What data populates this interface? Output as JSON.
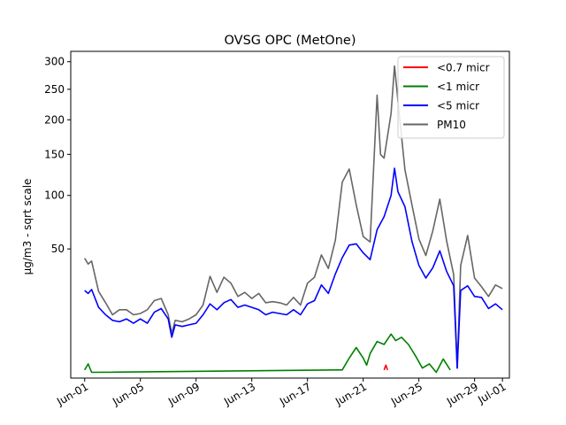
{
  "chart_data": {
    "type": "line",
    "title": "OVSG OPC (MetOne)",
    "xlabel": "",
    "ylabel": "µg/m3 - sqrt scale",
    "y_scale": "sqrt",
    "ylim": [
      0,
      320
    ],
    "xlim": [
      "2023-05-31T00:00",
      "2023-07-01T12:00"
    ],
    "grid": false,
    "legend_position": "top-right",
    "x_ticks": [
      {
        "date": "2023-06-01",
        "label": "Jun-01"
      },
      {
        "date": "2023-06-05",
        "label": "Jun-05"
      },
      {
        "date": "2023-06-09",
        "label": "Jun-09"
      },
      {
        "date": "2023-06-13",
        "label": "Jun-13"
      },
      {
        "date": "2023-06-17",
        "label": "Jun-17"
      },
      {
        "date": "2023-06-21",
        "label": "Jun-21"
      },
      {
        "date": "2023-06-25",
        "label": "Jun-25"
      },
      {
        "date": "2023-06-29",
        "label": "Jun-29"
      },
      {
        "date": "2023-07-01",
        "label": "Jul-01"
      }
    ],
    "y_ticks": [
      50,
      100,
      150,
      200,
      250,
      300
    ],
    "series": [
      {
        "name": "<0.7 micr",
        "color": "#ff0000",
        "points": [
          [
            "2023-06-22T12:00",
            0.2
          ],
          [
            "2023-06-22T15:00",
            0.5
          ],
          [
            "2023-06-22T18:00",
            0.2
          ]
        ]
      },
      {
        "name": "<1 micr",
        "color": "#008000",
        "points": [
          [
            "2023-06-01T00:00",
            0.2
          ],
          [
            "2023-06-01T06:00",
            0.6
          ],
          [
            "2023-06-01T12:00",
            0.1
          ],
          [
            "2023-06-19T12:00",
            0.2
          ],
          [
            "2023-06-20T00:00",
            1.2
          ],
          [
            "2023-06-20T12:00",
            2.8
          ],
          [
            "2023-06-21T00:00",
            1.2
          ],
          [
            "2023-06-21T06:00",
            0.5
          ],
          [
            "2023-06-21T12:00",
            1.8
          ],
          [
            "2023-06-22T00:00",
            4.0
          ],
          [
            "2023-06-22T12:00",
            3.4
          ],
          [
            "2023-06-23T00:00",
            5.8
          ],
          [
            "2023-06-23T08:00",
            4.2
          ],
          [
            "2023-06-23T18:00",
            5.0
          ],
          [
            "2023-06-24T06:00",
            3.4
          ],
          [
            "2023-06-24T18:00",
            1.5
          ],
          [
            "2023-06-25T06:00",
            0.3
          ],
          [
            "2023-06-25T18:00",
            0.6
          ],
          [
            "2023-06-26T06:00",
            0.1
          ],
          [
            "2023-06-26T18:00",
            1.1
          ],
          [
            "2023-06-27T06:00",
            0.2
          ]
        ]
      },
      {
        "name": "<5 micr",
        "color": "#0000ff",
        "points": [
          [
            "2023-06-01T00:00",
            23.0
          ],
          [
            "2023-06-01T06:00",
            21.5
          ],
          [
            "2023-06-01T12:00",
            23.5
          ],
          [
            "2023-06-02T00:00",
            15.0
          ],
          [
            "2023-06-02T12:00",
            12.0
          ],
          [
            "2023-06-03T00:00",
            10.0
          ],
          [
            "2023-06-03T12:00",
            9.5
          ],
          [
            "2023-06-04T00:00",
            10.5
          ],
          [
            "2023-06-04T12:00",
            9.0
          ],
          [
            "2023-06-05T00:00",
            10.5
          ],
          [
            "2023-06-05T12:00",
            9.0
          ],
          [
            "2023-06-06T00:00",
            13.0
          ],
          [
            "2023-06-06T12:00",
            14.5
          ],
          [
            "2023-06-07T00:00",
            10.5
          ],
          [
            "2023-06-07T06:00",
            5.0
          ],
          [
            "2023-06-07T12:00",
            8.5
          ],
          [
            "2023-06-08T00:00",
            8.0
          ],
          [
            "2023-06-08T12:00",
            8.5
          ],
          [
            "2023-06-09T00:00",
            9.0
          ],
          [
            "2023-06-09T12:00",
            12.0
          ],
          [
            "2023-06-10T00:00",
            16.5
          ],
          [
            "2023-06-10T12:00",
            14.0
          ],
          [
            "2023-06-11T00:00",
            17.0
          ],
          [
            "2023-06-11T12:00",
            18.5
          ],
          [
            "2023-06-12T00:00",
            15.0
          ],
          [
            "2023-06-12T12:00",
            16.0
          ],
          [
            "2023-06-13T00:00",
            15.0
          ],
          [
            "2023-06-13T12:00",
            14.0
          ],
          [
            "2023-06-14T00:00",
            12.0
          ],
          [
            "2023-06-14T12:00",
            13.0
          ],
          [
            "2023-06-15T00:00",
            12.5
          ],
          [
            "2023-06-15T12:00",
            12.0
          ],
          [
            "2023-06-16T00:00",
            14.0
          ],
          [
            "2023-06-16T12:00",
            12.0
          ],
          [
            "2023-06-17T00:00",
            16.5
          ],
          [
            "2023-06-17T12:00",
            18.0
          ],
          [
            "2023-06-18T00:00",
            26.0
          ],
          [
            "2023-06-18T12:00",
            21.5
          ],
          [
            "2023-06-19T00:00",
            32.5
          ],
          [
            "2023-06-19T12:00",
            43.5
          ],
          [
            "2023-06-20T00:00",
            53.0
          ],
          [
            "2023-06-20T12:00",
            54.0
          ],
          [
            "2023-06-21T00:00",
            47.0
          ],
          [
            "2023-06-21T12:00",
            42.0
          ],
          [
            "2023-06-22T00:00",
            66.0
          ],
          [
            "2023-06-22T12:00",
            78.0
          ],
          [
            "2023-06-23T00:00",
            100.0
          ],
          [
            "2023-06-23T06:00",
            132.0
          ],
          [
            "2023-06-23T12:00",
            104.0
          ],
          [
            "2023-06-24T00:00",
            88.0
          ],
          [
            "2023-06-24T12:00",
            56.0
          ],
          [
            "2023-06-25T00:00",
            38.0
          ],
          [
            "2023-06-25T12:00",
            30.0
          ],
          [
            "2023-06-26T00:00",
            36.5
          ],
          [
            "2023-06-26T12:00",
            48.5
          ],
          [
            "2023-06-27T00:00",
            34.0
          ],
          [
            "2023-06-27T12:00",
            25.5
          ],
          [
            "2023-06-27T18:00",
            0.3
          ],
          [
            "2023-06-28T00:00",
            23.0
          ],
          [
            "2023-06-28T12:00",
            25.5
          ],
          [
            "2023-06-29T00:00",
            20.0
          ],
          [
            "2023-06-29T12:00",
            19.5
          ],
          [
            "2023-06-30T00:00",
            14.5
          ],
          [
            "2023-06-30T12:00",
            16.5
          ],
          [
            "2023-07-01T00:00",
            14.0
          ]
        ]
      },
      {
        "name": "PM10",
        "color": "#666666",
        "points": [
          [
            "2023-06-01T00:00",
            43.0
          ],
          [
            "2023-06-01T06:00",
            39.0
          ],
          [
            "2023-06-01T12:00",
            41.0
          ],
          [
            "2023-06-02T00:00",
            22.5
          ],
          [
            "2023-06-02T12:00",
            17.0
          ],
          [
            "2023-06-03T00:00",
            12.0
          ],
          [
            "2023-06-03T12:00",
            14.0
          ],
          [
            "2023-06-04T00:00",
            14.0
          ],
          [
            "2023-06-04T12:00",
            12.0
          ],
          [
            "2023-06-05T00:00",
            12.5
          ],
          [
            "2023-06-05T12:00",
            14.0
          ],
          [
            "2023-06-06T00:00",
            18.0
          ],
          [
            "2023-06-06T12:00",
            19.0
          ],
          [
            "2023-06-07T00:00",
            12.0
          ],
          [
            "2023-06-07T06:00",
            6.0
          ],
          [
            "2023-06-07T12:00",
            10.0
          ],
          [
            "2023-06-08T00:00",
            9.5
          ],
          [
            "2023-06-08T12:00",
            10.5
          ],
          [
            "2023-06-09T00:00",
            12.0
          ],
          [
            "2023-06-09T12:00",
            16.0
          ],
          [
            "2023-06-10T00:00",
            31.0
          ],
          [
            "2023-06-10T12:00",
            22.0
          ],
          [
            "2023-06-11T00:00",
            30.5
          ],
          [
            "2023-06-11T12:00",
            27.0
          ],
          [
            "2023-06-12T00:00",
            20.0
          ],
          [
            "2023-06-12T12:00",
            22.0
          ],
          [
            "2023-06-13T00:00",
            19.0
          ],
          [
            "2023-06-13T12:00",
            21.5
          ],
          [
            "2023-06-14T00:00",
            17.0
          ],
          [
            "2023-06-14T12:00",
            17.5
          ],
          [
            "2023-06-15T00:00",
            17.0
          ],
          [
            "2023-06-15T12:00",
            16.0
          ],
          [
            "2023-06-16T00:00",
            19.5
          ],
          [
            "2023-06-16T12:00",
            16.0
          ],
          [
            "2023-06-17T00:00",
            27.0
          ],
          [
            "2023-06-17T12:00",
            30.5
          ],
          [
            "2023-06-18T00:00",
            45.5
          ],
          [
            "2023-06-18T12:00",
            36.0
          ],
          [
            "2023-06-19T00:00",
            57.0
          ],
          [
            "2023-06-19T12:00",
            115.0
          ],
          [
            "2023-06-20T00:00",
            131.0
          ],
          [
            "2023-06-20T12:00",
            90.0
          ],
          [
            "2023-06-21T00:00",
            60.0
          ],
          [
            "2023-06-21T12:00",
            55.5
          ],
          [
            "2023-06-22T00:00",
            240.0
          ],
          [
            "2023-06-22T06:00",
            150.0
          ],
          [
            "2023-06-22T12:00",
            145.0
          ],
          [
            "2023-06-23T00:00",
            210.0
          ],
          [
            "2023-06-23T06:00",
            292.0
          ],
          [
            "2023-06-23T12:00",
            230.0
          ],
          [
            "2023-06-24T00:00",
            130.0
          ],
          [
            "2023-06-24T12:00",
            90.0
          ],
          [
            "2023-06-25T00:00",
            58.0
          ],
          [
            "2023-06-25T12:00",
            45.0
          ],
          [
            "2023-06-26T00:00",
            65.0
          ],
          [
            "2023-06-26T12:00",
            96.0
          ],
          [
            "2023-06-27T00:00",
            56.0
          ],
          [
            "2023-06-27T12:00",
            32.0
          ],
          [
            "2023-06-27T18:00",
            0.3
          ],
          [
            "2023-06-28T00:00",
            38.0
          ],
          [
            "2023-06-28T12:00",
            61.0
          ],
          [
            "2023-06-29T00:00",
            30.0
          ],
          [
            "2023-06-29T12:00",
            25.0
          ],
          [
            "2023-06-30T00:00",
            20.0
          ],
          [
            "2023-06-30T12:00",
            26.0
          ],
          [
            "2023-07-01T00:00",
            24.0
          ]
        ]
      }
    ]
  }
}
